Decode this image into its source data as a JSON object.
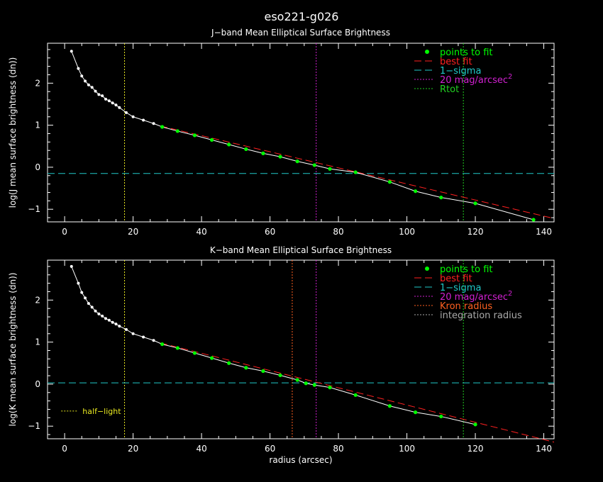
{
  "page": {
    "title": "eso221-g026"
  },
  "colors": {
    "background": "#000000",
    "axes": "#ffffff",
    "points_to_fit": "#00ff00",
    "best_fit": "#ff2020",
    "one_sigma": "#20c8c8",
    "mag20": "#d020d0",
    "rtot": "#20d020",
    "kron": "#ff6020",
    "integration": "#aaaaaa",
    "half_light": "#e8e820",
    "profile": "#ffffff"
  },
  "chart_data": [
    {
      "type": "scatter",
      "title": "J−band Mean Elliptical Surface Brightness",
      "xlabel": "",
      "ylabel": "log(J mean surface brightness (dn))",
      "xlim": [
        -5,
        143
      ],
      "ylim": [
        -1.3,
        2.95
      ],
      "xticks": [
        0,
        20,
        40,
        60,
        80,
        100,
        120,
        140
      ],
      "yticks": [
        -1,
        0,
        1,
        2
      ],
      "legend_position": "top-right",
      "legend": [
        {
          "label": "points to fit",
          "style": "dot",
          "color": "#00ff00"
        },
        {
          "label": "best fit",
          "style": "dashed",
          "color": "#ff2020"
        },
        {
          "label": "1−sigma",
          "style": "dashed",
          "color": "#20c8c8"
        },
        {
          "label": "20 mag/arcsec",
          "sup": "2",
          "style": "dotted",
          "color": "#d020d0"
        },
        {
          "label": "Rtot",
          "style": "dotted",
          "color": "#20d020"
        }
      ],
      "profile": {
        "x": [
          2,
          4,
          5,
          6,
          7,
          8,
          9,
          10,
          11,
          12,
          13,
          14,
          15,
          16,
          18,
          20,
          23,
          26,
          28.5,
          33,
          38,
          43,
          48,
          53,
          58,
          63,
          68,
          73,
          77.5,
          85,
          95,
          102.5,
          110,
          120,
          137
        ],
        "y": [
          2.76,
          2.35,
          2.17,
          2.05,
          1.96,
          1.9,
          1.81,
          1.73,
          1.7,
          1.62,
          1.58,
          1.53,
          1.48,
          1.42,
          1.3,
          1.2,
          1.12,
          1.04,
          0.96,
          0.86,
          0.76,
          0.65,
          0.54,
          0.43,
          0.33,
          0.25,
          0.14,
          0.05,
          -0.04,
          -0.12,
          -0.35,
          -0.57,
          -0.72,
          -0.86,
          -1.25
        ]
      },
      "fit_points": {
        "x": [
          28.5,
          33,
          38,
          43,
          48,
          53,
          58,
          63,
          68,
          73,
          77.5,
          85,
          95,
          102.5,
          110,
          120,
          137
        ],
        "y": [
          0.96,
          0.86,
          0.76,
          0.65,
          0.54,
          0.43,
          0.33,
          0.25,
          0.14,
          0.05,
          -0.04,
          -0.12,
          -0.35,
          -0.57,
          -0.72,
          -0.86,
          -1.25
        ]
      },
      "best_fit_line": {
        "x": [
          28,
          143
        ],
        "y": [
          0.98,
          -1.22
        ]
      },
      "hlines": [
        {
          "y": -0.15,
          "style": "dashed",
          "color": "#20c8c8"
        }
      ],
      "vlines": [
        {
          "x": 17.5,
          "style": "dotted",
          "color": "#e8e820"
        },
        {
          "x": 73.5,
          "style": "dotted",
          "color": "#d020d0"
        },
        {
          "x": 116.5,
          "style": "dotted",
          "color": "#20d020"
        }
      ],
      "annotations": []
    },
    {
      "type": "scatter",
      "title": "K−band Mean Elliptical Surface Brightness",
      "xlabel": "radius (arcsec)",
      "ylabel": "log(K mean surface brightness (dn))",
      "xlim": [
        -5,
        143
      ],
      "ylim": [
        -1.3,
        2.95
      ],
      "xticks": [
        0,
        20,
        40,
        60,
        80,
        100,
        120,
        140
      ],
      "yticks": [
        -1,
        0,
        1,
        2
      ],
      "legend_position": "top-right",
      "legend": [
        {
          "label": "points to fit",
          "style": "dot",
          "color": "#00ff00"
        },
        {
          "label": "best fit",
          "style": "dashed",
          "color": "#ff2020"
        },
        {
          "label": "1−sigma",
          "style": "dashed",
          "color": "#20c8c8"
        },
        {
          "label": "20 mag/arcsec",
          "sup": "2",
          "style": "dotted",
          "color": "#d020d0"
        },
        {
          "label": "Kron radius",
          "style": "dotted",
          "color": "#ff6020"
        },
        {
          "label": "integration radius",
          "style": "dotted",
          "color": "#aaaaaa"
        }
      ],
      "profile": {
        "x": [
          2,
          4,
          5,
          6,
          7,
          8,
          9,
          10,
          11,
          12,
          13,
          14,
          15,
          16,
          18,
          20,
          23,
          26,
          28.5,
          33,
          38,
          43,
          48,
          53,
          58,
          63,
          68,
          70.5,
          73,
          77.5,
          85,
          95,
          102.5,
          110,
          120
        ],
        "y": [
          2.8,
          2.4,
          2.18,
          2.05,
          1.92,
          1.83,
          1.74,
          1.67,
          1.62,
          1.56,
          1.52,
          1.47,
          1.43,
          1.38,
          1.3,
          1.2,
          1.12,
          1.04,
          0.95,
          0.86,
          0.74,
          0.62,
          0.5,
          0.39,
          0.31,
          0.21,
          0.1,
          0.02,
          -0.02,
          -0.08,
          -0.26,
          -0.52,
          -0.67,
          -0.77,
          -0.96
        ]
      },
      "fit_points": {
        "x": [
          28.5,
          33,
          38,
          43,
          48,
          53,
          58,
          63,
          68,
          70.5,
          73,
          77.5,
          85,
          95,
          102.5,
          110,
          120
        ],
        "y": [
          0.95,
          0.86,
          0.74,
          0.62,
          0.5,
          0.39,
          0.31,
          0.21,
          0.1,
          0.02,
          -0.02,
          -0.08,
          -0.26,
          -0.52,
          -0.67,
          -0.77,
          -0.96
        ]
      },
      "best_fit_line": {
        "x": [
          28,
          143
        ],
        "y": [
          0.98,
          -1.38
        ]
      },
      "hlines": [
        {
          "y": 0.03,
          "style": "dashed",
          "color": "#20c8c8"
        }
      ],
      "vlines": [
        {
          "x": 17.5,
          "style": "dotted",
          "color": "#e8e820"
        },
        {
          "x": 66.5,
          "style": "dotted",
          "color": "#ff6020"
        },
        {
          "x": 73.5,
          "style": "dotted",
          "color": "#d020d0"
        },
        {
          "x": 116.5,
          "style": "dotted",
          "color": "#20d020"
        }
      ],
      "annotations": [
        {
          "label": "half−light",
          "style": "dotted",
          "color": "#e8e820",
          "x": -1,
          "y": -0.64
        }
      ]
    }
  ]
}
